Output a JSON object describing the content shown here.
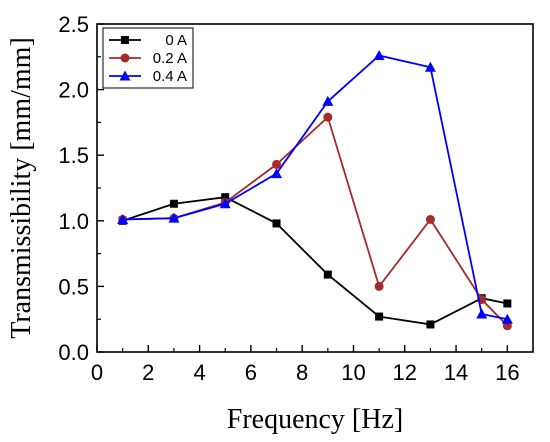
{
  "chart_data": {
    "type": "line",
    "xlabel": "Frequency [Hz]",
    "ylabel": "Transmissibility [mm/mm]",
    "xlim": [
      0,
      17
    ],
    "ylim": [
      0,
      2.5
    ],
    "xticks": [
      0,
      2,
      4,
      6,
      8,
      10,
      12,
      14,
      16
    ],
    "yticks": [
      0.0,
      0.5,
      1.0,
      1.5,
      2.0,
      2.5
    ],
    "xtick_labels": [
      "0",
      "2",
      "4",
      "6",
      "8",
      "10",
      "12",
      "14",
      "16"
    ],
    "ytick_labels": [
      "0.0",
      "0.5",
      "1.0",
      "1.5",
      "2.0",
      "2.5"
    ],
    "x": [
      1,
      3,
      5,
      7,
      9,
      11,
      13,
      15,
      16
    ],
    "grid": false,
    "legend_position": "top-left",
    "series": [
      {
        "name": "0 A",
        "color": "#000000",
        "marker": "square",
        "values": [
          1.0,
          1.13,
          1.18,
          0.98,
          0.59,
          0.27,
          0.21,
          0.41,
          0.37
        ]
      },
      {
        "name": "0.2 A",
        "color": "#a52a2a",
        "marker": "circle",
        "values": [
          1.01,
          1.02,
          1.14,
          1.43,
          1.79,
          0.5,
          1.01,
          0.4,
          0.2
        ]
      },
      {
        "name": "0.4 A",
        "color": "#0000ff",
        "marker": "triangle",
        "values": [
          1.01,
          1.02,
          1.13,
          1.36,
          1.91,
          2.26,
          2.17,
          0.29,
          0.25
        ]
      }
    ]
  }
}
